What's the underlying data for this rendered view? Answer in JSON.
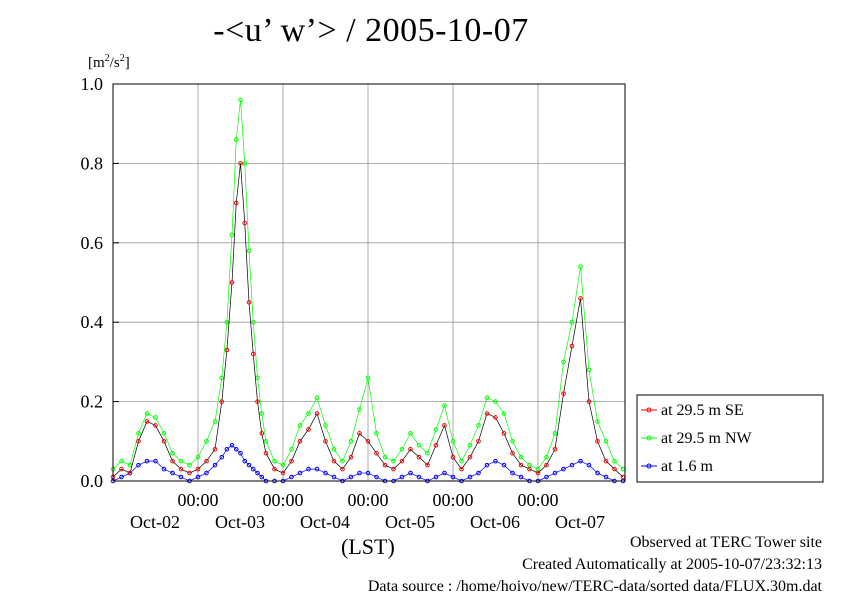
{
  "title": "-<u’ w’> / 2005-10-07",
  "unit_prefix": "[m",
  "unit_sup1": "2",
  "unit_mid": "/s",
  "unit_sup2": "2",
  "unit_suffix": "]",
  "xlabel": "(LST)",
  "footer": {
    "line1": "Observed at TERC Tower site",
    "line2": "Created Automatically at 2005-10-07/23:32:13",
    "line3": "Data source : /home/hoivo/new/TERC-data/sorted data/FLUX.30m.dat"
  },
  "chart_data": {
    "type": "line",
    "title": "-<u’ w’> / 2005-10-07",
    "xlabel": "(LST)",
    "ylabel": "[m2/s2]",
    "ylim": [
      0,
      1.0
    ],
    "xlim_days": [
      0,
      6
    ],
    "y_ticks": [
      "0.0",
      "0.2",
      "0.4",
      "0.6",
      "0.8",
      "1.0"
    ],
    "x_ticks_time": [
      "00:00",
      "00:00",
      "00:00",
      "00:00",
      "00:00"
    ],
    "x_ticks_date": [
      "Oct-02",
      "Oct-03",
      "Oct-04",
      "Oct-05",
      "Oct-06",
      "Oct-07"
    ],
    "grid": true,
    "legend_position": "right",
    "series": [
      {
        "name": "at 29.5 m SE",
        "color": "#ff0000",
        "x_days": [
          0.0,
          0.1,
          0.2,
          0.3,
          0.4,
          0.5,
          0.6,
          0.7,
          0.8,
          0.9,
          1.0,
          1.1,
          1.2,
          1.28,
          1.34,
          1.4,
          1.45,
          1.5,
          1.55,
          1.6,
          1.65,
          1.7,
          1.75,
          1.8,
          1.9,
          2.0,
          2.1,
          2.2,
          2.3,
          2.4,
          2.5,
          2.6,
          2.7,
          2.8,
          2.9,
          3.0,
          3.1,
          3.2,
          3.3,
          3.4,
          3.5,
          3.6,
          3.7,
          3.8,
          3.9,
          4.0,
          4.1,
          4.2,
          4.3,
          4.4,
          4.5,
          4.6,
          4.7,
          4.8,
          4.9,
          5.0,
          5.1,
          5.2,
          5.3,
          5.4,
          5.5,
          5.6,
          5.7,
          5.8,
          5.9,
          6.0
        ],
        "values": [
          0.01,
          0.03,
          0.02,
          0.1,
          0.15,
          0.14,
          0.1,
          0.05,
          0.03,
          0.02,
          0.03,
          0.05,
          0.08,
          0.2,
          0.33,
          0.5,
          0.7,
          0.8,
          0.65,
          0.45,
          0.32,
          0.2,
          0.12,
          0.07,
          0.03,
          0.02,
          0.05,
          0.1,
          0.13,
          0.17,
          0.1,
          0.05,
          0.03,
          0.06,
          0.12,
          0.1,
          0.07,
          0.04,
          0.03,
          0.05,
          0.08,
          0.06,
          0.04,
          0.09,
          0.14,
          0.06,
          0.03,
          0.06,
          0.1,
          0.17,
          0.16,
          0.12,
          0.07,
          0.04,
          0.03,
          0.02,
          0.04,
          0.08,
          0.22,
          0.34,
          0.46,
          0.2,
          0.1,
          0.05,
          0.03,
          0.01
        ]
      },
      {
        "name": "at 29.5 m NW",
        "color": "#00ff00",
        "x_days": [
          0.0,
          0.1,
          0.2,
          0.3,
          0.4,
          0.5,
          0.6,
          0.7,
          0.8,
          0.9,
          1.0,
          1.1,
          1.2,
          1.28,
          1.34,
          1.4,
          1.45,
          1.5,
          1.55,
          1.6,
          1.65,
          1.7,
          1.75,
          1.8,
          1.9,
          2.0,
          2.1,
          2.2,
          2.3,
          2.4,
          2.5,
          2.6,
          2.7,
          2.8,
          2.9,
          3.0,
          3.1,
          3.2,
          3.3,
          3.4,
          3.5,
          3.6,
          3.7,
          3.8,
          3.9,
          4.0,
          4.1,
          4.2,
          4.3,
          4.4,
          4.5,
          4.6,
          4.7,
          4.8,
          4.9,
          5.0,
          5.1,
          5.2,
          5.3,
          5.4,
          5.5,
          5.6,
          5.7,
          5.8,
          5.9,
          6.0
        ],
        "values": [
          0.03,
          0.05,
          0.04,
          0.12,
          0.17,
          0.16,
          0.12,
          0.07,
          0.05,
          0.04,
          0.06,
          0.1,
          0.15,
          0.26,
          0.4,
          0.62,
          0.86,
          0.96,
          0.8,
          0.58,
          0.4,
          0.26,
          0.17,
          0.1,
          0.05,
          0.04,
          0.08,
          0.14,
          0.17,
          0.21,
          0.14,
          0.08,
          0.05,
          0.1,
          0.18,
          0.26,
          0.12,
          0.06,
          0.05,
          0.08,
          0.12,
          0.09,
          0.07,
          0.13,
          0.19,
          0.1,
          0.05,
          0.09,
          0.14,
          0.21,
          0.2,
          0.17,
          0.1,
          0.06,
          0.04,
          0.03,
          0.06,
          0.12,
          0.3,
          0.4,
          0.54,
          0.28,
          0.15,
          0.1,
          0.05,
          0.03
        ]
      },
      {
        "name": "at 1.6 m",
        "color": "#0000ff",
        "x_days": [
          0.0,
          0.1,
          0.2,
          0.3,
          0.4,
          0.5,
          0.6,
          0.7,
          0.8,
          0.9,
          1.0,
          1.1,
          1.2,
          1.28,
          1.34,
          1.4,
          1.45,
          1.5,
          1.55,
          1.6,
          1.65,
          1.7,
          1.75,
          1.8,
          1.9,
          2.0,
          2.1,
          2.2,
          2.3,
          2.4,
          2.5,
          2.6,
          2.7,
          2.8,
          2.9,
          3.0,
          3.1,
          3.2,
          3.3,
          3.4,
          3.5,
          3.6,
          3.7,
          3.8,
          3.9,
          4.0,
          4.1,
          4.2,
          4.3,
          4.4,
          4.5,
          4.6,
          4.7,
          4.8,
          4.9,
          5.0,
          5.1,
          5.2,
          5.3,
          5.4,
          5.5,
          5.6,
          5.7,
          5.8,
          5.9,
          6.0
        ],
        "values": [
          0.0,
          0.01,
          0.02,
          0.04,
          0.05,
          0.05,
          0.03,
          0.02,
          0.01,
          0.0,
          0.01,
          0.02,
          0.04,
          0.06,
          0.08,
          0.09,
          0.08,
          0.07,
          0.05,
          0.04,
          0.03,
          0.02,
          0.01,
          0.0,
          0.0,
          0.0,
          0.01,
          0.02,
          0.03,
          0.03,
          0.02,
          0.01,
          0.0,
          0.01,
          0.02,
          0.02,
          0.01,
          0.0,
          0.0,
          0.01,
          0.02,
          0.01,
          0.0,
          0.01,
          0.02,
          0.01,
          0.0,
          0.01,
          0.02,
          0.04,
          0.05,
          0.04,
          0.02,
          0.01,
          0.0,
          0.0,
          0.01,
          0.02,
          0.03,
          0.04,
          0.05,
          0.04,
          0.02,
          0.01,
          0.0,
          0.0
        ]
      }
    ]
  }
}
